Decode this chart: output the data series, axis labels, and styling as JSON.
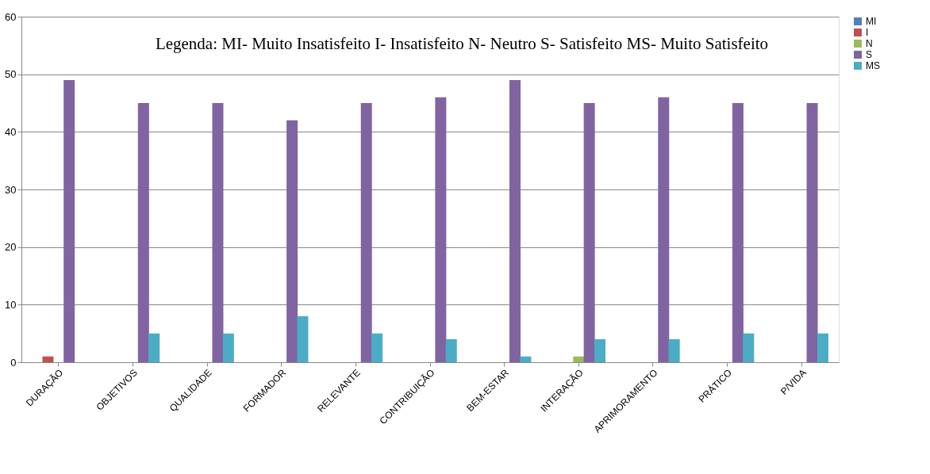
{
  "chart_data": {
    "type": "bar",
    "categories": [
      "DURAÇÃO",
      "OBJETIVOS",
      "QUALIDADE",
      "FORMADOR",
      "RELEVANTE",
      "CONTRIBUIÇÃO",
      "BEM-ESTAR",
      "INTERAÇÃO",
      "APRIMORAMENTO",
      "PRÁTICO",
      "P/VIDA"
    ],
    "series": [
      {
        "name": "MI",
        "color": "#4f81bd",
        "values": [
          0,
          0,
          0,
          0,
          0,
          0,
          0,
          0,
          0,
          0,
          0
        ]
      },
      {
        "name": "I",
        "color": "#c0504d",
        "values": [
          1,
          0,
          0,
          0,
          0,
          0,
          0,
          0,
          0,
          0,
          0
        ]
      },
      {
        "name": "N",
        "color": "#9bbb59",
        "values": [
          0,
          0,
          0,
          0,
          0,
          0,
          0,
          1,
          0,
          0,
          0
        ]
      },
      {
        "name": "S",
        "color": "#8064a2",
        "values": [
          49,
          45,
          45,
          42,
          45,
          46,
          49,
          45,
          46,
          45,
          45
        ]
      },
      {
        "name": "MS",
        "color": "#4bacc6",
        "values": [
          0,
          5,
          5,
          8,
          5,
          4,
          1,
          4,
          4,
          5,
          5
        ]
      }
    ],
    "ylim": [
      0,
      60
    ],
    "yticks": [
      0,
      10,
      20,
      30,
      40,
      50,
      60
    ],
    "grid": "y",
    "legend": "right",
    "annotations": [
      "Legenda: MI- Muito Insatisfeito I- Insatisfeito N- Neutro S- Satisfeito MS- Muito Satisfeito"
    ]
  }
}
